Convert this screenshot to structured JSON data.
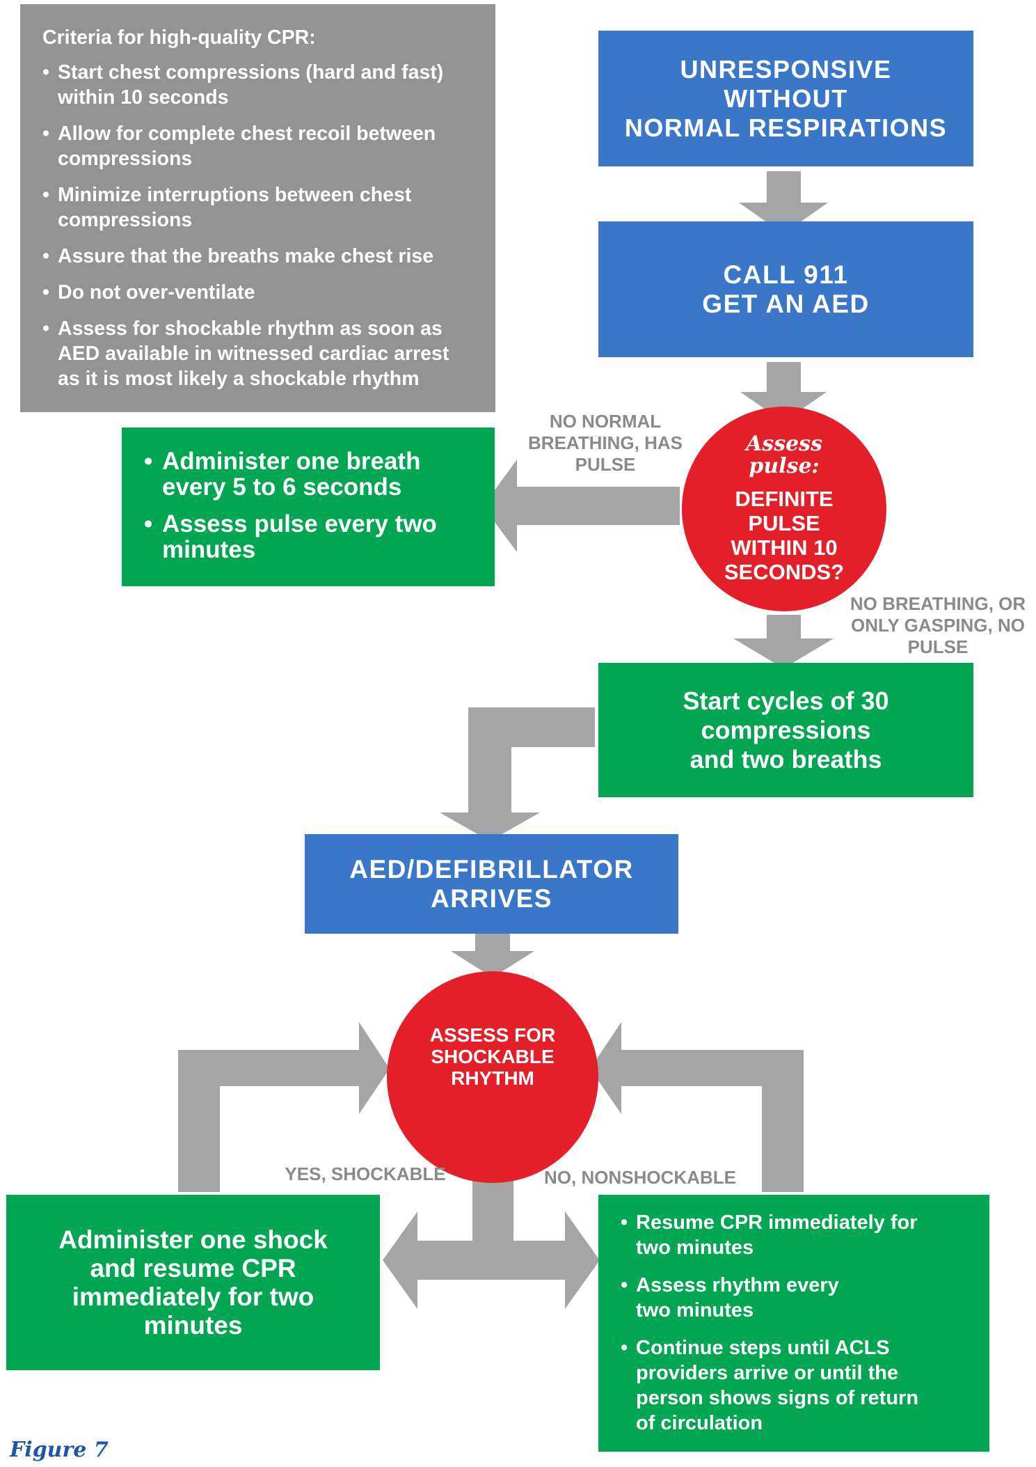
{
  "criteria": {
    "title": "Criteria for high-quality CPR:",
    "items": [
      [
        "Start chest compressions (hard and fast)",
        "within 10 seconds"
      ],
      [
        "Allow for complete chest recoil between",
        "compressions"
      ],
      [
        "Minimize interruptions between chest",
        "compressions"
      ],
      [
        "Assure that the breaths make chest rise"
      ],
      [
        "Do not over-ventilate"
      ],
      [
        "Assess for shockable rhythm as soon as",
        "AED available in witnessed cardiac arrest",
        "as it is most likely a shockable rhythm"
      ]
    ]
  },
  "unresponsive": {
    "lines": [
      "UNRESPONSIVE",
      "WITHOUT",
      "NORMAL RESPIRATIONS"
    ]
  },
  "call911": {
    "lines": [
      "CALL 911",
      "GET AN AED"
    ]
  },
  "assess_pulse": {
    "script_lines": [
      "Assess",
      "pulse:"
    ],
    "lines": [
      "DEFINITE",
      "PULSE",
      "WITHIN 10",
      "SECONDS?"
    ]
  },
  "label_has_pulse": {
    "lines": [
      "NO NORMAL",
      "BREATHING, HAS",
      "PULSE"
    ]
  },
  "label_no_pulse": {
    "lines": [
      "NO BREATHING, OR",
      "ONLY GASPING, NO",
      "PULSE"
    ]
  },
  "rescue_breathing": {
    "items": [
      [
        "Administer one breath",
        "every 5 to 6 seconds"
      ],
      [
        "Assess pulse every two",
        "minutes"
      ]
    ]
  },
  "start_cycles": {
    "lines": [
      "Start cycles of 30",
      "compressions",
      "and two breaths"
    ]
  },
  "aed_arrives": {
    "lines": [
      "AED/DEFIBRILLATOR",
      "ARRIVES"
    ]
  },
  "assess_rhythm": {
    "lines": [
      "ASSESS FOR",
      "SHOCKABLE",
      "RHYTHM"
    ]
  },
  "label_shockable": "YES, SHOCKABLE",
  "label_nonshockable": "NO, NONSHOCKABLE",
  "shock": {
    "lines": [
      "Administer one shock",
      "and resume CPR",
      "immediately for two",
      "minutes"
    ]
  },
  "nonshock": {
    "items": [
      [
        "Resume CPR immediately for",
        "two minutes"
      ],
      [
        "Assess rhythm every",
        "two minutes"
      ],
      [
        "Continue steps until ACLS",
        "providers arrive or until the",
        "person shows signs of return",
        "of circulation"
      ]
    ]
  },
  "caption": "Figure 7",
  "colors": {
    "blue": "#3b77c8",
    "green": "#00a651",
    "red": "#e3202a",
    "gray_box": "#939393",
    "arrow": "#a5a5a5",
    "caption": "#1f56a8"
  }
}
